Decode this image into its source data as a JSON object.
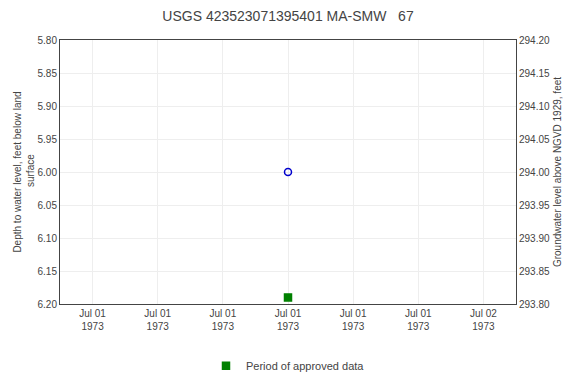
{
  "chart_data": {
    "type": "scatter",
    "title": "USGS 423523071395401 MA-SMW   67",
    "ylabel": "Depth to water level, feet below land\n surface",
    "y2label": "Groundwater level above NGVD 1929, feet",
    "categories": [
      "Jul 01\n1973",
      "Jul 01\n1973",
      "Jul 01\n1973",
      "Jul 01\n1973",
      "Jul 01\n1973",
      "Jul 01\n1973",
      "Jul 02\n1973"
    ],
    "series": [
      {
        "color": "#0000cc",
        "marker": "circle-open",
        "values": [
          null,
          null,
          null,
          6.0,
          null,
          null,
          null
        ]
      },
      {
        "name": "Period of approved data",
        "color": "#008000",
        "marker": "square",
        "values": [
          null,
          null,
          null,
          6.19,
          null,
          null,
          null
        ]
      }
    ],
    "ylim": [
      6.2,
      5.8
    ],
    "yticks": [
      {
        "value": 5.8,
        "label": "5.80"
      },
      5.85,
      {
        "value": 5.9,
        "label": "5.90"
      },
      5.95,
      {
        "value": 6.0,
        "label": "6.00"
      },
      6.05,
      {
        "value": 6.1,
        "label": "6.10"
      },
      6.15,
      {
        "value": 6.2,
        "label": "6.20"
      }
    ],
    "y2lim": [
      293.8,
      294.2
    ],
    "y2ticks": [
      {
        "value": 294.2,
        "label": "294.20"
      },
      294.15,
      {
        "value": 294.1,
        "label": "294.10"
      },
      294.05,
      {
        "value": 294.0,
        "label": "294.00"
      },
      293.95,
      {
        "value": 293.9,
        "label": "293.90"
      },
      293.85,
      {
        "value": 293.8,
        "label": "293.80"
      }
    ],
    "grid": true,
    "legend": "bottom"
  }
}
